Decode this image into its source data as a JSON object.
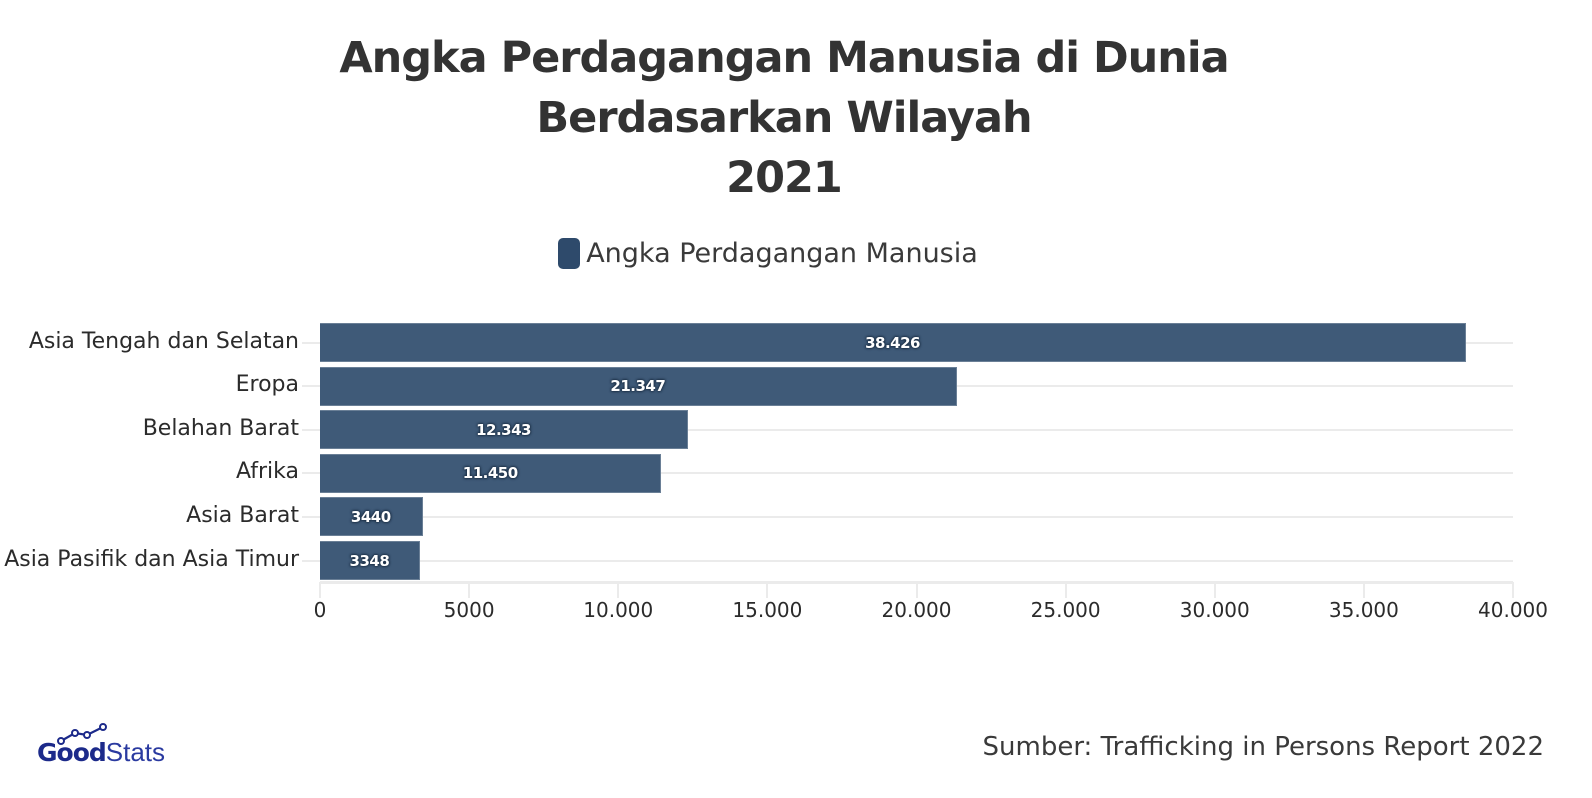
{
  "title": {
    "line1": "Angka Perdagangan Manusia di Dunia",
    "line2": "Berdasarkan Wilayah",
    "line3": "2021"
  },
  "legend": {
    "label": "Angka Perdagangan Manusia",
    "color": "#2e4a6b"
  },
  "bars": [
    {
      "category": "Asia Tengah dan Selatan",
      "value": 38426,
      "label": "38.426"
    },
    {
      "category": "Eropa",
      "value": 21347,
      "label": "21.347"
    },
    {
      "category": "Belahan Barat",
      "value": 12343,
      "label": "12.343"
    },
    {
      "category": "Afrika",
      "value": 11450,
      "label": "11.450"
    },
    {
      "category": "Asia Barat",
      "value": 3440,
      "label": "3440"
    },
    {
      "category": "Asia Pasifik dan Asia Timur",
      "value": 3348,
      "label": "3348"
    }
  ],
  "axis": {
    "ticks": [
      "0",
      "5000",
      "10.000",
      "15.000",
      "20.000",
      "25.000",
      "30.000",
      "35.000",
      "40.000"
    ]
  },
  "footer": {
    "logo_bold": "Good",
    "logo_light": "Stats",
    "source": "Sumber: Trafficking in Persons Report 2022"
  },
  "colors": {
    "bar": "#3f5a78",
    "grid": "#ebebeb",
    "logo": "#1c2a8a"
  },
  "chart_data": {
    "type": "bar",
    "orientation": "horizontal",
    "title": "Angka Perdagangan Manusia di Dunia Berdasarkan Wilayah 2021",
    "categories": [
      "Asia Tengah dan Selatan",
      "Eropa",
      "Belahan Barat",
      "Afrika",
      "Asia Barat",
      "Asia Pasifik dan Asia Timur"
    ],
    "series": [
      {
        "name": "Angka Perdagangan Manusia",
        "values": [
          38426,
          21347,
          12343,
          11450,
          3440,
          3348
        ]
      }
    ],
    "xlabel": "",
    "ylabel": "",
    "xlim": [
      0,
      40000
    ],
    "xticks": [
      0,
      5000,
      10000,
      15000,
      20000,
      25000,
      30000,
      35000,
      40000
    ],
    "grid": true,
    "legend_position": "top",
    "data_labels": true,
    "source": "Sumber: Trafficking in Persons Report 2022"
  }
}
